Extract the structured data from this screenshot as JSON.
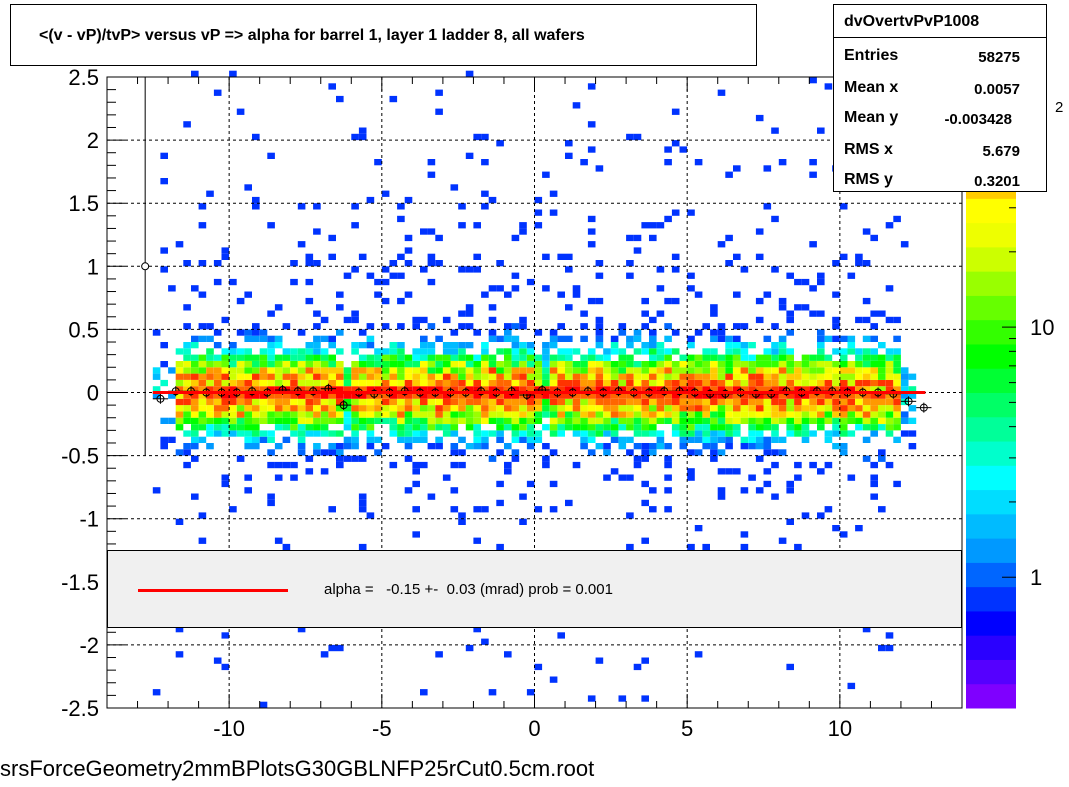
{
  "title": "<(v - vP)/tvP> versus   vP => alpha for barrel 1, layer 1 ladder 8, all wafers",
  "stats": {
    "name": "dvOvertvPvP1008",
    "rows": [
      {
        "label": "Entries",
        "value": "58275"
      },
      {
        "label": "Mean x",
        "value": "0.0057"
      },
      {
        "label": "Mean y",
        "value": "-0.003428"
      },
      {
        "label": "RMS x",
        "value": "5.679"
      },
      {
        "label": "RMS y",
        "value": "0.3201"
      }
    ]
  },
  "legend": {
    "text": "alpha =   -0.15 +-  0.03 (mrad) prob = 0.001",
    "line_color": "#ff0000"
  },
  "footer": "srsForceGeometry2mmBPlotsG30GBLNFP25rCut0.5cm.root",
  "palette_partial_label": ")",
  "palette_exponent": "2",
  "chart_data": {
    "type": "heatmap",
    "title": "<(v - vP)/tvP> versus   vP => alpha for barrel 1, layer 1 ladder 8, all wafers",
    "xlabel": "",
    "ylabel": "",
    "xlim": [
      -14,
      14
    ],
    "ylim": [
      -2.5,
      2.5
    ],
    "x_ticks": [
      -10,
      -5,
      0,
      5,
      10
    ],
    "y_ticks": [
      -2.5,
      -2,
      -1.5,
      -1,
      -0.5,
      0,
      0.5,
      1,
      1.5,
      2,
      2.5
    ],
    "grid": true,
    "colorbar": {
      "scale": "log",
      "ticks": [
        1,
        10
      ],
      "tick_labels": [
        "1",
        "10"
      ],
      "range": [
        0.3,
        100
      ]
    },
    "palette": [
      "#7f00ff",
      "#5500ff",
      "#2a00ff",
      "#0000ff",
      "#0033ff",
      "#0066ff",
      "#0099ff",
      "#00bbff",
      "#00ddff",
      "#00ffff",
      "#00ffcc",
      "#00ff99",
      "#00ff66",
      "#00ff33",
      "#00ff00",
      "#33ff00",
      "#66ff00",
      "#99ff00",
      "#ccff00",
      "#eeff00",
      "#ffff00",
      "#ffcc00",
      "#ff9900",
      "#ff6600",
      "#ff3300",
      "#ff0000"
    ],
    "profile": {
      "x": [
        -12.25,
        -11.75,
        -11.25,
        -10.75,
        -10.25,
        -9.75,
        -9.25,
        -8.75,
        -8.25,
        -7.75,
        -7.25,
        -6.75,
        -6.25,
        -5.75,
        -5.25,
        -4.75,
        -4.25,
        -3.75,
        -3.25,
        -2.75,
        -2.25,
        -1.75,
        -1.25,
        -0.75,
        -0.25,
        0.25,
        0.75,
        1.25,
        1.75,
        2.25,
        2.75,
        3.25,
        3.75,
        4.25,
        4.75,
        5.25,
        5.75,
        6.25,
        6.75,
        7.25,
        7.75,
        8.25,
        8.75,
        9.25,
        9.75,
        10.25,
        10.75,
        11.25,
        11.75,
        12.25,
        12.75
      ],
      "y": [
        -0.05,
        0.01,
        0.01,
        0.0,
        0.0,
        0.0,
        0.01,
        0.0,
        0.02,
        0.01,
        0.01,
        0.03,
        -0.1,
        0.0,
        -0.01,
        0.0,
        0.01,
        0.0,
        0.0,
        0.0,
        0.0,
        0.01,
        0.0,
        0.01,
        -0.02,
        0.02,
        0.0,
        0.0,
        0.01,
        0.0,
        0.01,
        0.0,
        0.0,
        0.01,
        0.01,
        0.0,
        -0.01,
        -0.01,
        0.0,
        -0.01,
        -0.01,
        0.01,
        0.0,
        0.01,
        0.01,
        0.0,
        0.0,
        0.0,
        -0.01,
        -0.07,
        -0.12
      ],
      "outlier": {
        "x": -12.75,
        "y": 1.0,
        "err_high": 2.5,
        "err_low": -0.5
      }
    },
    "fit": {
      "x": [
        -12.5,
        12.8
      ],
      "y": [
        0.0,
        0.0
      ],
      "color": "#ff0000"
    },
    "series": [
      {
        "name": "alpha =   -0.15 +-  0.03 (mrad) prob = 0.001"
      }
    ]
  }
}
